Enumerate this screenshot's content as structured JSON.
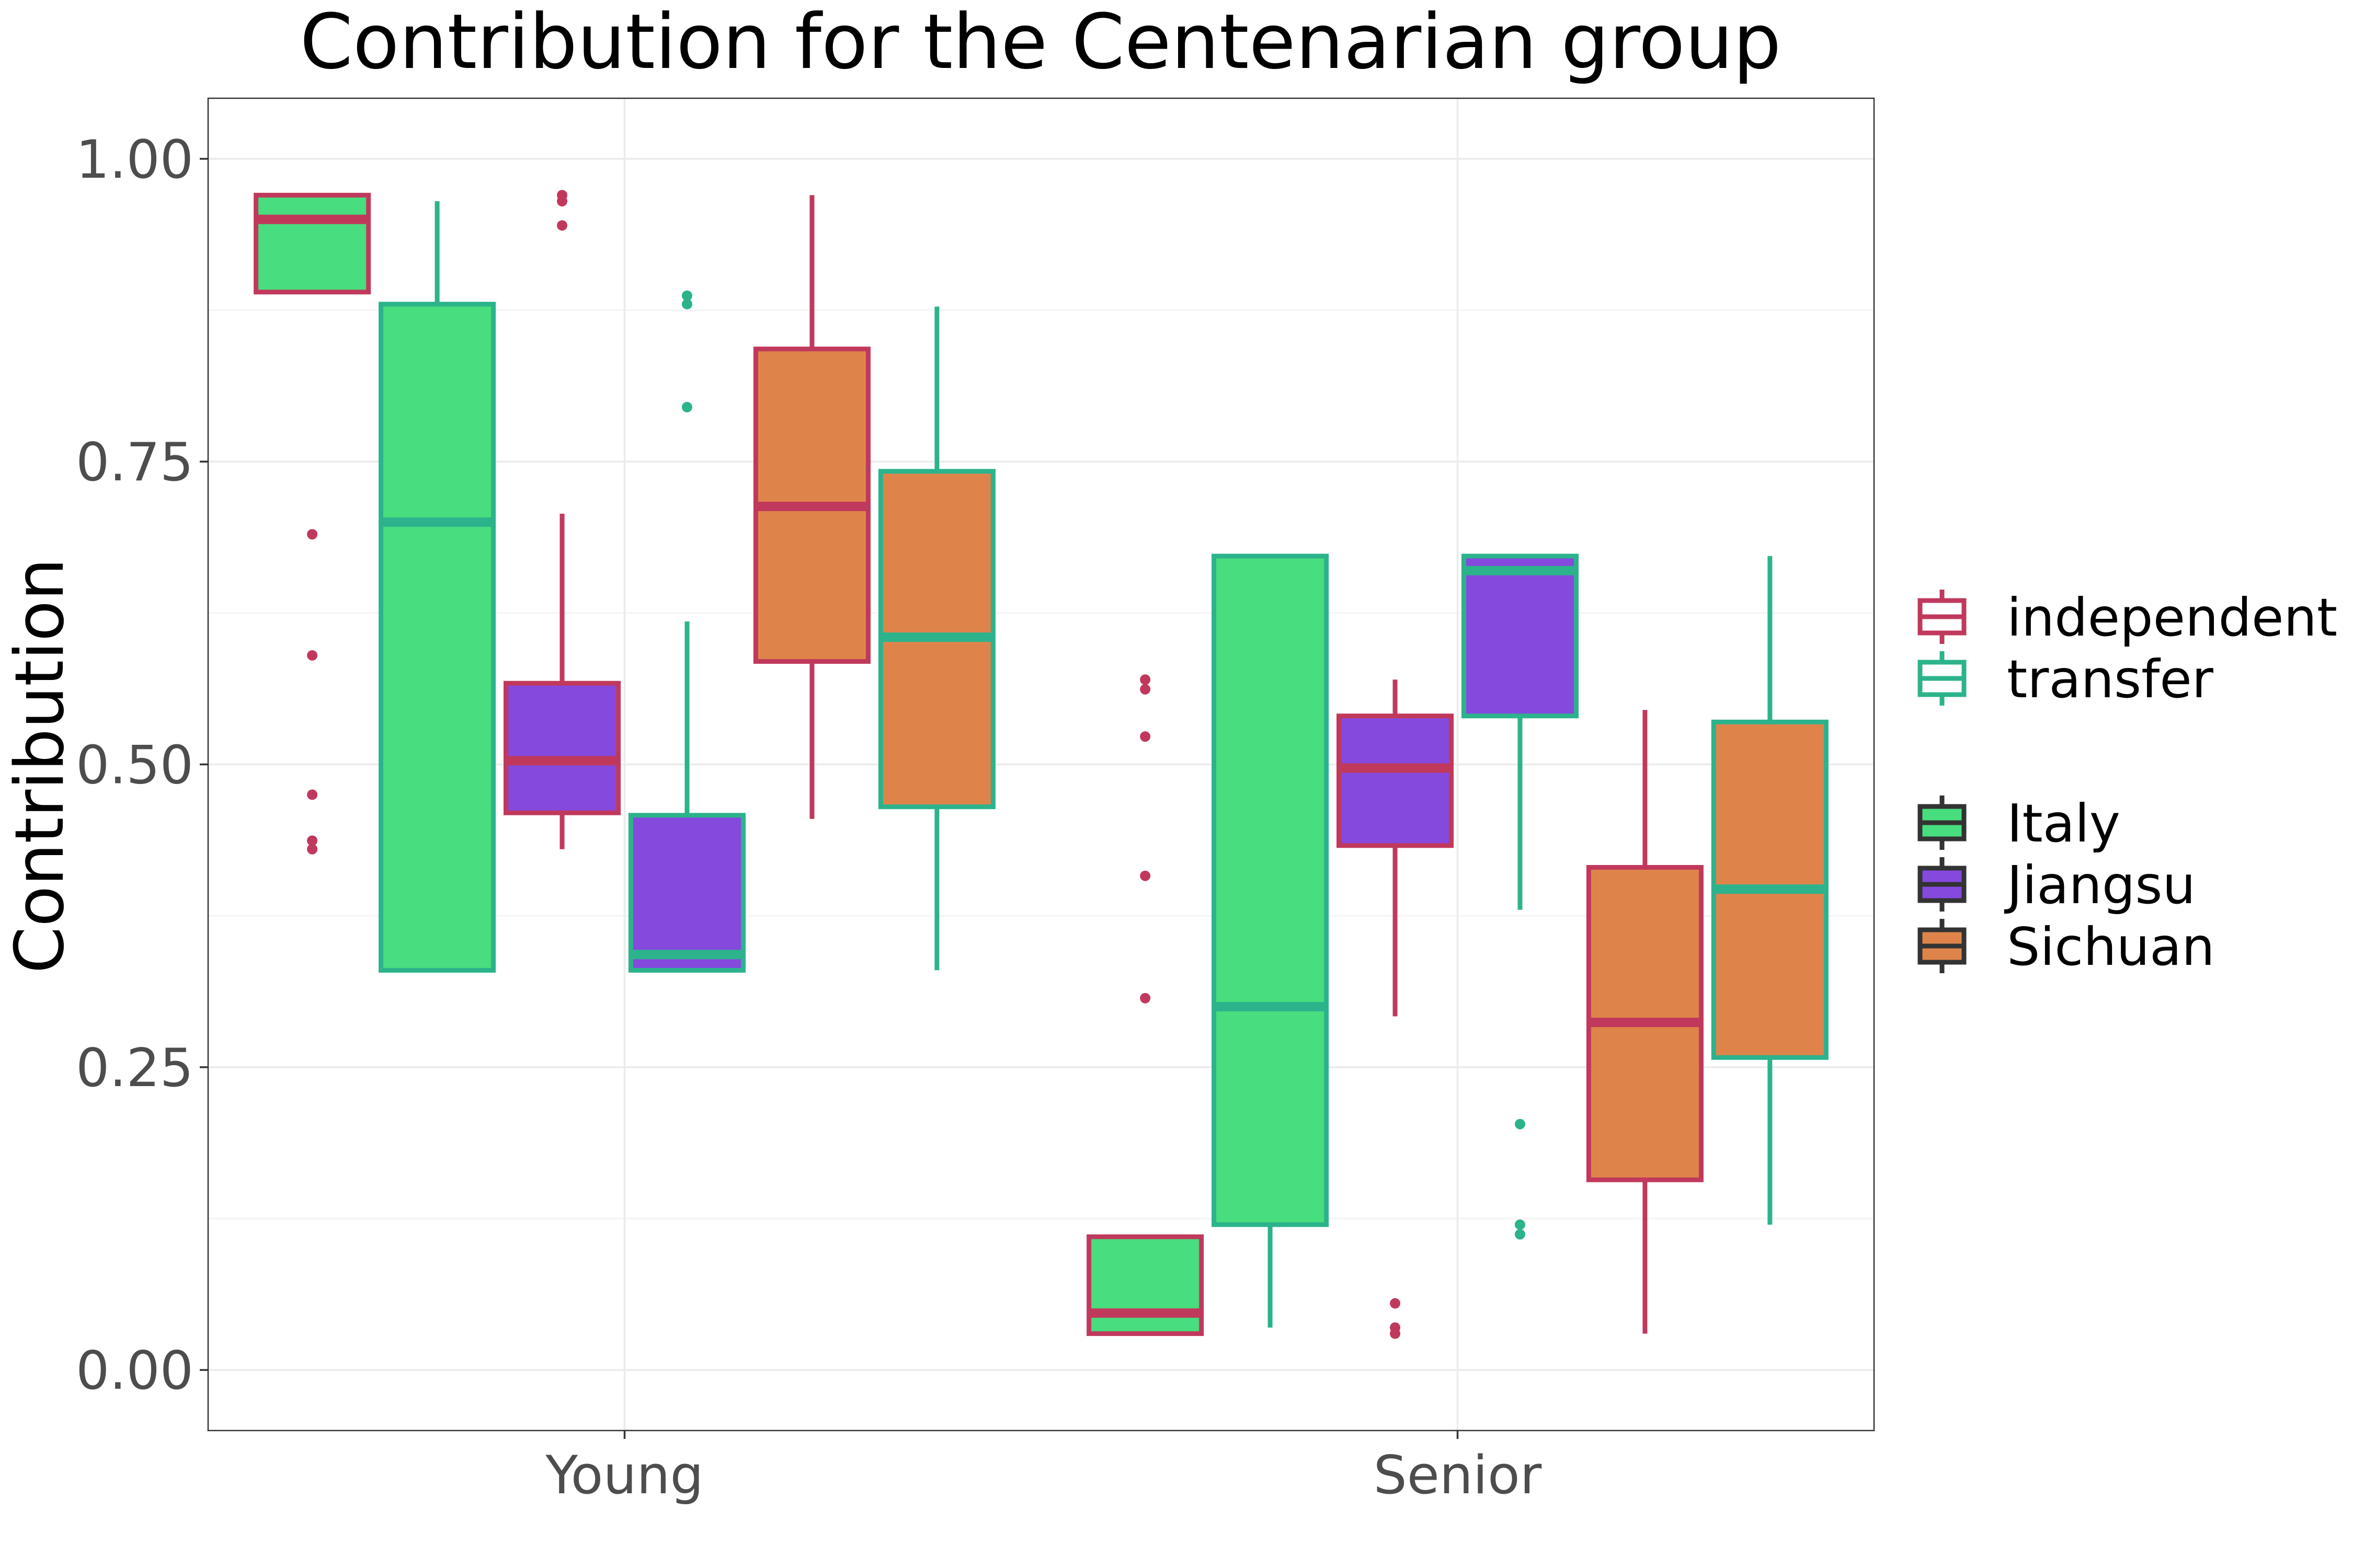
{
  "chart_data": {
    "type": "boxplot",
    "title": "Contribution for the Centenarian group",
    "xlabel": "",
    "ylabel": "Contribution",
    "ylim": [
      -0.05,
      1.05
    ],
    "yticks": [
      "0.00",
      "0.25",
      "0.50",
      "0.75",
      "1.00"
    ],
    "ytick_values": [
      0,
      0.25,
      0.5,
      0.75,
      1.0
    ],
    "categories": [
      "Young",
      "Senior"
    ],
    "grid": true,
    "legend_position": "right",
    "legend_color": {
      "entries": [
        {
          "label": "independent",
          "color": "#c0395c"
        },
        {
          "label": "transfer",
          "color": "#2cb38c"
        }
      ]
    },
    "legend_fill": {
      "entries": [
        {
          "label": "Italy",
          "color": "#48dd7e"
        },
        {
          "label": "Jiangsu",
          "color": "#8549de"
        },
        {
          "label": "Sichuan",
          "color": "#de844b"
        }
      ]
    },
    "series": [
      {
        "category": "Young",
        "region": "Italy",
        "type": "independent",
        "min": 0.89,
        "q1": 0.89,
        "median": 0.95,
        "q3": 0.97,
        "max": 0.97,
        "outliers": [
          0.69,
          0.59,
          0.475,
          0.437,
          0.43
        ]
      },
      {
        "category": "Young",
        "region": "Italy",
        "type": "transfer",
        "min": 0.33,
        "q1": 0.33,
        "median": 0.7,
        "q3": 0.88,
        "max": 0.965,
        "outliers": []
      },
      {
        "category": "Young",
        "region": "Jiangsu",
        "type": "independent",
        "min": 0.43,
        "q1": 0.46,
        "median": 0.503,
        "q3": 0.567,
        "max": 0.707,
        "outliers": [
          0.97,
          0.965,
          0.945
        ]
      },
      {
        "category": "Young",
        "region": "Jiangsu",
        "type": "transfer",
        "min": 0.33,
        "q1": 0.33,
        "median": 0.343,
        "q3": 0.458,
        "max": 0.618,
        "outliers": [
          0.887,
          0.88,
          0.795
        ]
      },
      {
        "category": "Young",
        "region": "Sichuan",
        "type": "independent",
        "min": 0.455,
        "q1": 0.585,
        "median": 0.713,
        "q3": 0.843,
        "max": 0.97,
        "outliers": []
      },
      {
        "category": "Young",
        "region": "Sichuan",
        "type": "transfer",
        "min": 0.33,
        "q1": 0.465,
        "median": 0.605,
        "q3": 0.742,
        "max": 0.878,
        "outliers": []
      },
      {
        "category": "Senior",
        "region": "Italy",
        "type": "independent",
        "min": 0.03,
        "q1": 0.03,
        "median": 0.047,
        "q3": 0.11,
        "max": 0.11,
        "outliers": [
          0.57,
          0.562,
          0.523,
          0.408,
          0.307
        ]
      },
      {
        "category": "Senior",
        "region": "Italy",
        "type": "transfer",
        "min": 0.035,
        "q1": 0.12,
        "median": 0.3,
        "q3": 0.672,
        "max": 0.672,
        "outliers": []
      },
      {
        "category": "Senior",
        "region": "Jiangsu",
        "type": "independent",
        "min": 0.292,
        "q1": 0.433,
        "median": 0.497,
        "q3": 0.54,
        "max": 0.57,
        "outliers": [
          0.055,
          0.035,
          0.03
        ]
      },
      {
        "category": "Senior",
        "region": "Jiangsu",
        "type": "transfer",
        "min": 0.38,
        "q1": 0.54,
        "median": 0.66,
        "q3": 0.672,
        "max": 0.672,
        "outliers": [
          0.203,
          0.12,
          0.112
        ]
      },
      {
        "category": "Senior",
        "region": "Sichuan",
        "type": "independent",
        "min": 0.03,
        "q1": 0.157,
        "median": 0.287,
        "q3": 0.415,
        "max": 0.545,
        "outliers": []
      },
      {
        "category": "Senior",
        "region": "Sichuan",
        "type": "transfer",
        "min": 0.12,
        "q1": 0.258,
        "median": 0.397,
        "q3": 0.535,
        "max": 0.672,
        "outliers": []
      }
    ]
  }
}
